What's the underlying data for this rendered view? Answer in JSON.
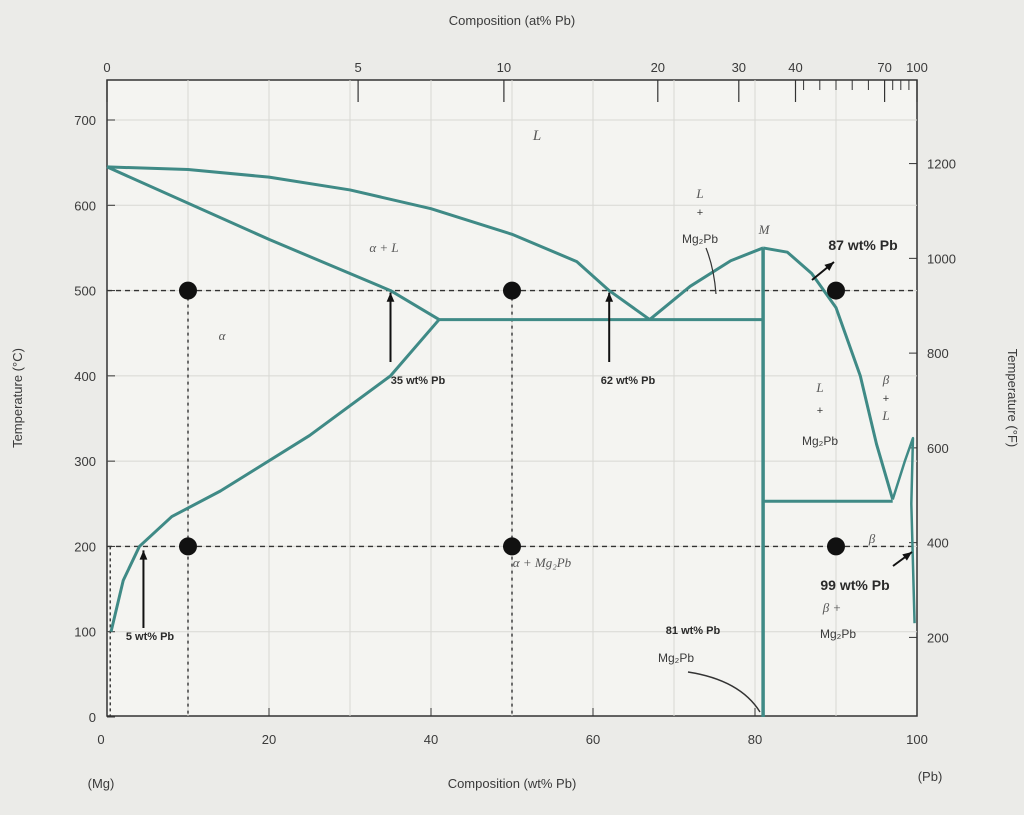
{
  "chart_data": {
    "type": "phase-diagram",
    "title": "",
    "top_axis": {
      "label": "Composition (at% Pb)",
      "ticks": [
        "0",
        "5",
        "10",
        "20",
        "30",
        "40",
        "70",
        "100"
      ]
    },
    "x_axis": {
      "label": "Composition (wt% Pb)",
      "range": [
        0,
        100
      ],
      "ticks": [
        "0",
        "20",
        "40",
        "60",
        "80",
        "100"
      ],
      "left_end": "(Mg)",
      "right_end": "(Pb)"
    },
    "y_axis_left": {
      "label": "Temperature (°C)",
      "range": [
        0,
        700
      ],
      "ticks": [
        "0",
        "100",
        "200",
        "300",
        "400",
        "500",
        "600",
        "700"
      ]
    },
    "y_axis_right": {
      "label": "Temperature (°F)",
      "ticks": [
        "200",
        "400",
        "600",
        "800",
        "1000",
        "1200"
      ]
    },
    "phase_labels": {
      "liquid": "L",
      "alpha_plus_liquid": "α + L",
      "alpha": "α",
      "l_mg2pb_top": [
        "L",
        "+",
        "Mg₂Pb"
      ],
      "m_point": "M",
      "l_mg2pb_right": [
        "L",
        "+",
        "Mg₂Pb"
      ],
      "beta_plus_l": [
        "β",
        "+",
        "L"
      ],
      "alpha_mg2pb": "α + Mg₂Pb",
      "beta": "β",
      "beta_mg2pb": [
        "β +",
        "Mg₂Pb"
      ],
      "mg2pb": "Mg₂Pb"
    },
    "annotations": {
      "a35": "35 wt% Pb",
      "a62": "62 wt% Pb",
      "a87": "87 wt% Pb",
      "a99": "99 wt% Pb",
      "a5": "5 wt% Pb",
      "a81": "81 wt% Pb"
    },
    "liquidus_left": [
      [
        0,
        645
      ],
      [
        10,
        642
      ],
      [
        20,
        633
      ],
      [
        30,
        618
      ],
      [
        40,
        596
      ],
      [
        50,
        566
      ],
      [
        58,
        534
      ],
      [
        62,
        500
      ],
      [
        67,
        466
      ]
    ],
    "solvus_alpha_liquid": [
      [
        0,
        645
      ],
      [
        20,
        560
      ],
      [
        35,
        500
      ],
      [
        41,
        466
      ]
    ],
    "solvus_alpha": [
      [
        0.5,
        100
      ],
      [
        2,
        160
      ],
      [
        4,
        200
      ],
      [
        8,
        235
      ],
      [
        14,
        265
      ],
      [
        25,
        330
      ],
      [
        35,
        400
      ],
      [
        41,
        466
      ]
    ],
    "eutectic_1": {
      "temp": 466,
      "from": 41,
      "to": 81
    },
    "liquidus_mg2pb_left": [
      [
        67,
        466
      ],
      [
        72,
        505
      ],
      [
        77,
        535
      ],
      [
        81,
        550
      ]
    ],
    "liquidus_mg2pb_right": [
      [
        81,
        550
      ],
      [
        84,
        545
      ],
      [
        87,
        520
      ],
      [
        90,
        480
      ],
      [
        93,
        400
      ],
      [
        95,
        320
      ],
      [
        97,
        255
      ]
    ],
    "eutectic_2": {
      "temp": 253,
      "from": 81,
      "to": 97
    },
    "compound_line": 81,
    "beta_region": [
      [
        97,
        255
      ],
      [
        98.5,
        300
      ],
      [
        99.5,
        327
      ],
      [
        99.3,
        250
      ],
      [
        99.7,
        110
      ]
    ],
    "isotherms": [
      500,
      200
    ],
    "verticals": [
      10,
      50
    ],
    "points": [
      [
        10,
        500
      ],
      [
        50,
        500
      ],
      [
        90,
        500
      ],
      [
        10,
        200
      ],
      [
        50,
        200
      ],
      [
        90,
        200
      ]
    ]
  }
}
